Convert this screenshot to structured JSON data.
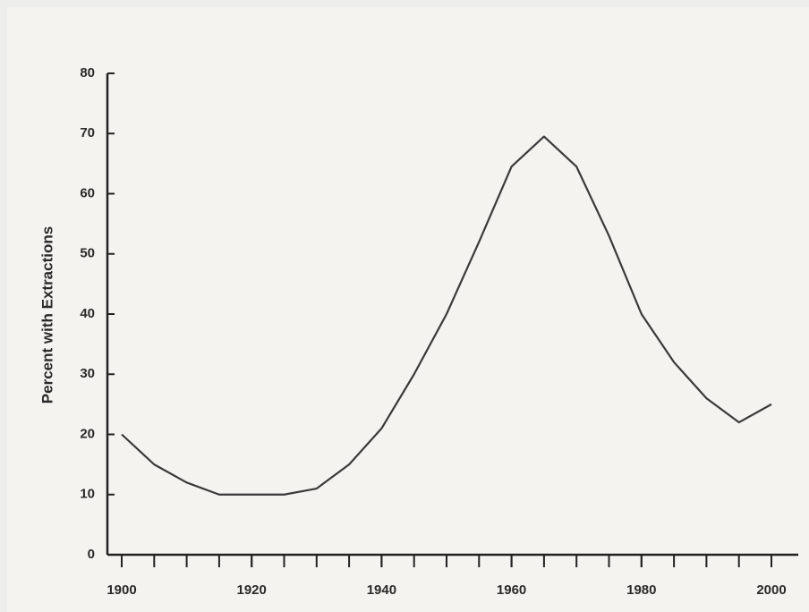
{
  "chart_data": {
    "type": "line",
    "y_label": "Percent with Extractions",
    "x": [
      1900,
      1905,
      1910,
      1915,
      1920,
      1925,
      1930,
      1935,
      1940,
      1945,
      1950,
      1955,
      1960,
      1965,
      1970,
      1975,
      1980,
      1985,
      1990,
      1995,
      2000
    ],
    "values": [
      20,
      15,
      12,
      10,
      10,
      10,
      11,
      15,
      21,
      30,
      40,
      52,
      64.5,
      69.5,
      64.5,
      53,
      40,
      32,
      26,
      22,
      25
    ],
    "color": "#3a3a3a",
    "xlim": [
      1900,
      2000
    ],
    "xticks": [
      1900,
      1920,
      1940,
      1960,
      1980,
      2000
    ],
    "ylim": [
      0,
      80
    ],
    "yticks": [
      0,
      10,
      20,
      30,
      40,
      50,
      60,
      70,
      80
    ],
    "grid": false
  }
}
